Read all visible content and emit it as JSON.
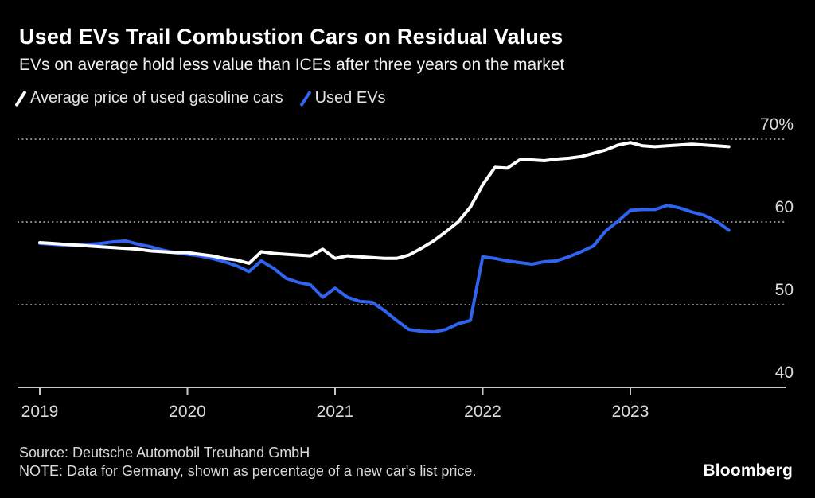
{
  "header": {
    "title": "Used EVs Trail Combustion Cars on Residual Values",
    "subtitle": "EVs on average hold less value than ICEs after three years on the market"
  },
  "legend": [
    {
      "label": "Average price of used gasoline cars",
      "color": "#ffffff"
    },
    {
      "label": "Used EVs",
      "color": "#2e64f0"
    }
  ],
  "footer": {
    "source": "Source: Deutsche Automobil Treuhand GmbH",
    "note": "NOTE: Data for Germany, shown as percentage of a new car's list price.",
    "brand": "Bloomberg"
  },
  "chart_data": {
    "type": "line",
    "title": "Used EVs Trail Combustion Cars on Residual Values",
    "unit": "percent of new car list price",
    "frequency": "monthly",
    "x_start": "2019-01",
    "x_end": "2023-09",
    "x_tick_labels": [
      "2019",
      "2020",
      "2021",
      "2022",
      "2023"
    ],
    "y_ticks": [
      {
        "value": 70,
        "label": "70%"
      },
      {
        "value": 60,
        "label": "60"
      },
      {
        "value": 50,
        "label": "50"
      },
      {
        "value": 40,
        "label": "40"
      }
    ],
    "ylim": [
      40,
      71.5
    ],
    "grid": "horizontal-dotted",
    "legend_position": "top-left",
    "colors": {
      "background": "#000000",
      "gridline": "#8a8a8a",
      "axis": "#c8c8c8",
      "tick_text": "#dcdcdc"
    },
    "series": [
      {
        "name": "Average price of used gasoline cars",
        "color": "#ffffff",
        "values": [
          57.5,
          57.4,
          57.3,
          57.2,
          57.1,
          57.0,
          56.9,
          56.8,
          56.7,
          56.5,
          56.4,
          56.3,
          56.3,
          56.1,
          55.9,
          55.6,
          55.4,
          55.0,
          56.4,
          56.2,
          56.1,
          56.0,
          55.9,
          56.7,
          55.6,
          55.9,
          55.8,
          55.7,
          55.6,
          55.6,
          56.0,
          56.8,
          57.7,
          58.8,
          60.0,
          61.8,
          64.5,
          66.6,
          66.5,
          67.5,
          67.5,
          67.4,
          67.6,
          67.7,
          67.9,
          68.3,
          68.7,
          69.3,
          69.6,
          69.2,
          69.1,
          69.2,
          69.3,
          69.4,
          69.3,
          69.2,
          69.1
        ]
      },
      {
        "name": "Used EVs",
        "color": "#2e64f0",
        "values": [
          57.4,
          57.3,
          57.2,
          57.2,
          57.3,
          57.4,
          57.6,
          57.7,
          57.3,
          57.0,
          56.6,
          56.3,
          56.1,
          55.9,
          55.6,
          55.2,
          54.7,
          54.0,
          55.3,
          54.4,
          53.2,
          52.7,
          52.4,
          50.9,
          52.0,
          50.9,
          50.4,
          50.3,
          49.3,
          48.1,
          47.0,
          46.8,
          46.7,
          47.0,
          47.7,
          48.1,
          55.8,
          55.6,
          55.3,
          55.1,
          54.9,
          55.2,
          55.3,
          55.8,
          56.4,
          57.1,
          58.9,
          60.1,
          61.4,
          61.5,
          61.5,
          62.0,
          61.7,
          61.2,
          60.8,
          60.1,
          59.0
        ]
      }
    ]
  }
}
